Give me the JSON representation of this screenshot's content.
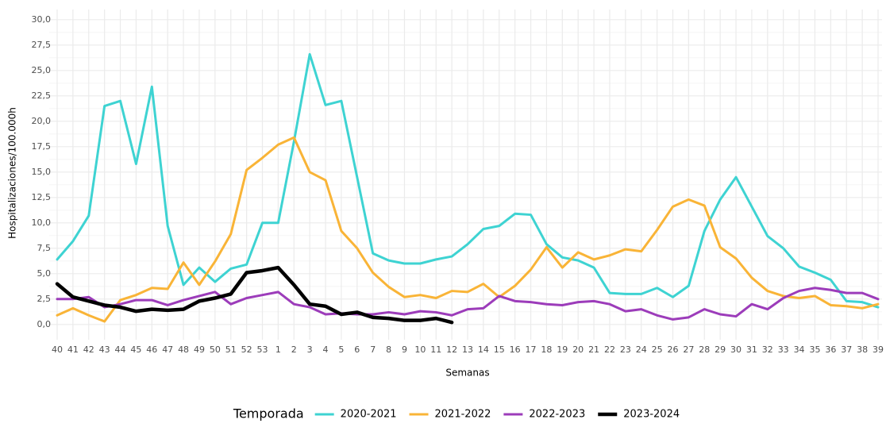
{
  "chart_data": {
    "type": "line",
    "y_label": "Hospitalizaciones/100.000h",
    "x_label": "Semanas",
    "legend_title": "Temporada",
    "legend_position": "bottom",
    "grid": true,
    "categories": [
      "40",
      "41",
      "42",
      "43",
      "44",
      "45",
      "46",
      "47",
      "48",
      "49",
      "50",
      "51",
      "52",
      "53",
      "1",
      "2",
      "3",
      "4",
      "5",
      "6",
      "7",
      "8",
      "9",
      "10",
      "11",
      "12",
      "13",
      "14",
      "15",
      "16",
      "17",
      "18",
      "19",
      "20",
      "21",
      "22",
      "23",
      "24",
      "25",
      "26",
      "27",
      "28",
      "29",
      "30",
      "31",
      "32",
      "33",
      "34",
      "35",
      "36",
      "37",
      "38",
      "39"
    ],
    "ylim": [
      -1.5,
      31
    ],
    "yticks": [
      {
        "value": 0,
        "label": "0,0"
      },
      {
        "value": 2.5,
        "label": "2,5"
      },
      {
        "value": 5,
        "label": "5,0"
      },
      {
        "value": 7.5,
        "label": "7,5"
      },
      {
        "value": 10,
        "label": "10,0"
      },
      {
        "value": 12.5,
        "label": "12,5"
      },
      {
        "value": 15,
        "label": "15,0"
      },
      {
        "value": 17.5,
        "label": "17,5"
      },
      {
        "value": 20,
        "label": "20,0"
      },
      {
        "value": 22.5,
        "label": "22,5"
      },
      {
        "value": 25,
        "label": "25,0"
      },
      {
        "value": 27.5,
        "label": "27,5"
      },
      {
        "value": 30,
        "label": "30,0"
      }
    ],
    "series": [
      {
        "name": "2020-2021",
        "color": "#3ed3d2",
        "width": 3,
        "values": [
          6.4,
          8.2,
          10.7,
          21.5,
          22.0,
          15.8,
          23.4,
          9.7,
          3.9,
          5.6,
          4.2,
          5.5,
          5.9,
          10.0,
          10.0,
          18.0,
          26.6,
          21.6,
          22.0,
          14.5,
          7.0,
          6.3,
          6.0,
          6.0,
          6.4,
          6.7,
          7.9,
          9.4,
          9.7,
          10.9,
          10.8,
          7.9,
          6.6,
          6.3,
          5.6,
          3.1,
          3.0,
          3.0,
          3.6,
          2.7,
          3.8,
          9.2,
          12.3,
          14.5,
          11.6,
          8.7,
          7.5,
          5.7,
          5.1,
          4.4,
          2.3,
          2.2,
          1.7
        ]
      },
      {
        "name": "2021-2022",
        "color": "#f9b437",
        "width": 3,
        "values": [
          0.9,
          1.6,
          0.9,
          0.3,
          2.4,
          2.9,
          3.6,
          3.5,
          6.1,
          3.9,
          6.2,
          8.9,
          15.2,
          16.4,
          17.7,
          18.4,
          15.0,
          14.2,
          9.2,
          7.5,
          5.1,
          3.7,
          2.7,
          2.9,
          2.6,
          3.3,
          3.2,
          4.0,
          2.7,
          3.8,
          5.4,
          7.6,
          5.6,
          7.1,
          6.4,
          6.8,
          7.4,
          7.2,
          9.3,
          11.6,
          12.3,
          11.7,
          7.6,
          6.5,
          4.6,
          3.3,
          2.8,
          2.6,
          2.8,
          1.9,
          1.8,
          1.6,
          2.0
        ]
      },
      {
        "name": "2022-2023",
        "color": "#9c3cba",
        "width": 3,
        "values": [
          2.5,
          2.5,
          2.7,
          1.7,
          2.0,
          2.4,
          2.4,
          1.9,
          2.4,
          2.8,
          3.2,
          2.0,
          2.6,
          2.9,
          3.2,
          2.0,
          1.7,
          1.0,
          1.1,
          1.0,
          1.0,
          1.2,
          1.0,
          1.3,
          1.2,
          0.9,
          1.5,
          1.6,
          2.8,
          2.3,
          2.2,
          2.0,
          1.9,
          2.2,
          2.3,
          2.0,
          1.3,
          1.5,
          0.9,
          0.5,
          0.7,
          1.5,
          1.0,
          0.8,
          2.0,
          1.5,
          2.6,
          3.3,
          3.6,
          3.4,
          3.1,
          3.1,
          2.5
        ]
      },
      {
        "name": "2023-2024",
        "color": "#000000",
        "width": 4.5,
        "values": [
          4.0,
          2.7,
          2.3,
          1.9,
          1.7,
          1.3,
          1.5,
          1.4,
          1.5,
          2.3,
          2.6,
          3.0,
          5.1,
          5.3,
          5.6,
          3.9,
          2.0,
          1.8,
          1.0,
          1.2,
          0.7,
          0.6,
          0.4,
          0.4,
          0.6,
          0.2,
          null,
          null,
          null,
          null,
          null,
          null,
          null,
          null,
          null,
          null,
          null,
          null,
          null,
          null,
          null,
          null,
          null,
          null,
          null,
          null,
          null,
          null,
          null,
          null,
          null,
          null,
          null
        ]
      }
    ]
  }
}
